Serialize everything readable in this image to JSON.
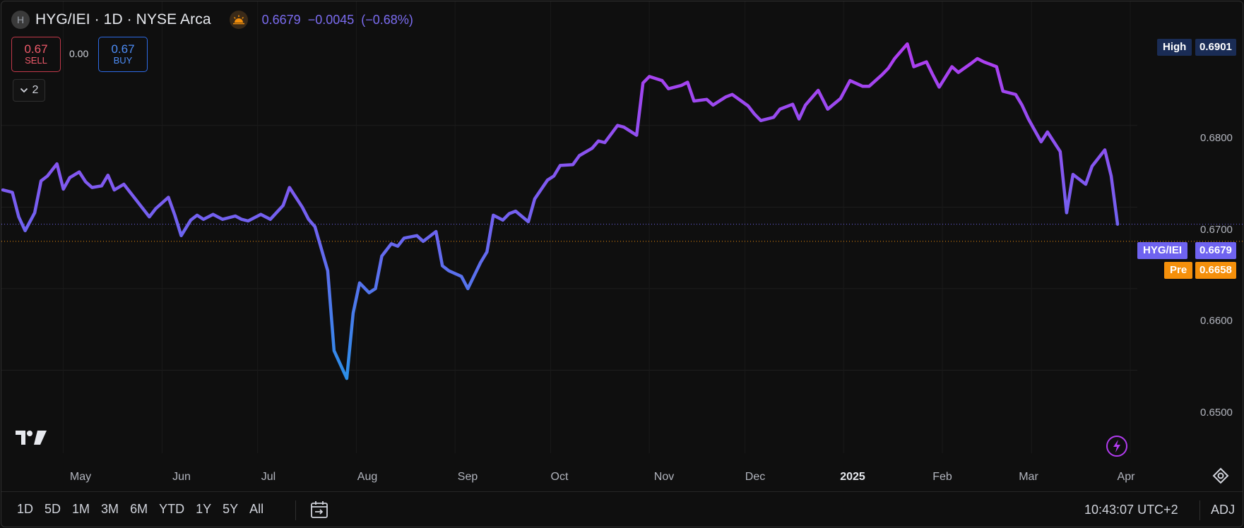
{
  "header": {
    "symbol_initial": "H",
    "title": "HYG/IEI · 1D · NYSE Arca",
    "last_price": "0.6679",
    "change": "−0.0045",
    "change_pct": "(−0.68%)",
    "session_icon": "sunrise-icon"
  },
  "trade": {
    "sell_price": "0.67",
    "sell_label": "SELL",
    "spread": "0.00",
    "buy_price": "0.67",
    "buy_label": "BUY",
    "indicators_count": "2"
  },
  "price_axis": {
    "ticks": [
      "0.6800",
      "0.6700",
      "0.6600",
      "0.6500"
    ],
    "high_label": "High",
    "high_value": "0.6901",
    "symbol_label": "HYG/IEI",
    "symbol_value": "0.6679",
    "pre_label": "Pre",
    "pre_value": "0.6658"
  },
  "time_axis": {
    "months": [
      "May",
      "Jun",
      "Jul",
      "Aug",
      "Sep",
      "Oct",
      "Nov",
      "Dec",
      "2025",
      "Feb",
      "Mar",
      "Apr"
    ]
  },
  "footer": {
    "ranges": [
      "1D",
      "5D",
      "1M",
      "3M",
      "6M",
      "YTD",
      "1Y",
      "5Y",
      "All"
    ],
    "clock": "10:43:07 UTC+2",
    "adj": "ADJ"
  },
  "colors": {
    "background": "#0f0f0f",
    "line_low": "#2b8fe8",
    "line_mid": "#6f63f0",
    "line_high": "#b23cf0",
    "symbol_tag": "#6f63f0",
    "pre_tag": "#f5900b",
    "high_tag": "#1a2c55",
    "sell": "#ef5a6a",
    "buy": "#4d8df7"
  },
  "chart_data": {
    "type": "line",
    "title": "HYG/IEI · 1D · NYSE Arca",
    "xlabel": "",
    "ylabel": "",
    "ylim": [
      0.6455,
      0.6905
    ],
    "x_range": [
      "2024-04-12",
      "2025-03-28"
    ],
    "grid": true,
    "high_line": 0.6901,
    "last_line": 0.6679,
    "pre_line": 0.6658,
    "series": [
      {
        "x": [
          "2024-04-12",
          "2024-04-15",
          "2024-04-17",
          "2024-04-19",
          "2024-04-22",
          "2024-04-24",
          "2024-04-26",
          "2024-04-29",
          "2024-05-01",
          "2024-05-03",
          "2024-05-06",
          "2024-05-08",
          "2024-05-10",
          "2024-05-13",
          "2024-05-15",
          "2024-05-17",
          "2024-05-20",
          "2024-05-22",
          "2024-05-24",
          "2024-05-28",
          "2024-05-30",
          "2024-06-03",
          "2024-06-05",
          "2024-06-07",
          "2024-06-10",
          "2024-06-12",
          "2024-06-14",
          "2024-06-17",
          "2024-06-20",
          "2024-06-24",
          "2024-06-26",
          "2024-06-28",
          "2024-07-02",
          "2024-07-05",
          "2024-07-09",
          "2024-07-11",
          "2024-07-15",
          "2024-07-17",
          "2024-07-19",
          "2024-07-23",
          "2024-07-25",
          "2024-07-29",
          "2024-07-31",
          "2024-08-02",
          "2024-08-05",
          "2024-08-07",
          "2024-08-09",
          "2024-08-12",
          "2024-08-14",
          "2024-08-16",
          "2024-08-20",
          "2024-08-22",
          "2024-08-26",
          "2024-08-28",
          "2024-08-30",
          "2024-09-03",
          "2024-09-05",
          "2024-09-09",
          "2024-09-11",
          "2024-09-13",
          "2024-09-16",
          "2024-09-18",
          "2024-09-20",
          "2024-09-24",
          "2024-09-26",
          "2024-09-30",
          "2024-10-02",
          "2024-10-04",
          "2024-10-08",
          "2024-10-10",
          "2024-10-14",
          "2024-10-16",
          "2024-10-18",
          "2024-10-22",
          "2024-10-24",
          "2024-10-28",
          "2024-10-30",
          "2024-11-01",
          "2024-11-05",
          "2024-11-07",
          "2024-11-11",
          "2024-11-13",
          "2024-11-15",
          "2024-11-19",
          "2024-11-21",
          "2024-11-25",
          "2024-11-27",
          "2024-12-02",
          "2024-12-04",
          "2024-12-06",
          "2024-12-10",
          "2024-12-12",
          "2024-12-16",
          "2024-12-18",
          "2024-12-20",
          "2024-12-24",
          "2024-12-27",
          "2024-12-31",
          "2025-01-03",
          "2025-01-07",
          "2025-01-09",
          "2025-01-13",
          "2025-01-15",
          "2025-01-17",
          "2025-01-21",
          "2025-01-23",
          "2025-01-27",
          "2025-01-29",
          "2025-01-31",
          "2025-02-04",
          "2025-02-06",
          "2025-02-10",
          "2025-02-12",
          "2025-02-14",
          "2025-02-18",
          "2025-02-20",
          "2025-02-24",
          "2025-02-26",
          "2025-02-28",
          "2025-03-04",
          "2025-03-06",
          "2025-03-10",
          "2025-03-12",
          "2025-03-14",
          "2025-03-18",
          "2025-03-20",
          "2025-03-24",
          "2025-03-26",
          "2025-03-28"
        ],
        "values": [
          0.6721,
          0.6718,
          0.6688,
          0.6671,
          0.6693,
          0.6732,
          0.6738,
          0.6753,
          0.6722,
          0.6736,
          0.6743,
          0.6731,
          0.6724,
          0.6726,
          0.6739,
          0.6721,
          0.6728,
          0.6718,
          0.6708,
          0.6688,
          0.6698,
          0.6712,
          0.669,
          0.6665,
          0.6684,
          0.669,
          0.6685,
          0.6691,
          0.6685,
          0.6689,
          0.6685,
          0.6683,
          0.6691,
          0.6685,
          0.6702,
          0.6724,
          0.67,
          0.6685,
          0.6676,
          0.6622,
          0.6524,
          0.649,
          0.657,
          0.6607,
          0.6595,
          0.66,
          0.664,
          0.6655,
          0.6652,
          0.6662,
          0.6665,
          0.6658,
          0.667,
          0.6628,
          0.6622,
          0.6615,
          0.66,
          0.6632,
          0.6645,
          0.669,
          0.6684,
          0.6692,
          0.6695,
          0.6682,
          0.671,
          0.6733,
          0.6738,
          0.6751,
          0.6752,
          0.6763,
          0.6772,
          0.6781,
          0.6779,
          0.68,
          0.6798,
          0.6788,
          0.6852,
          0.686,
          0.6855,
          0.6845,
          0.6849,
          0.6853,
          0.683,
          0.6832,
          0.6825,
          0.6835,
          0.6838,
          0.6824,
          0.6814,
          0.6806,
          0.681,
          0.682,
          0.6826,
          0.6808,
          0.6825,
          0.6843,
          0.682,
          0.6833,
          0.6855,
          0.6848,
          0.6848,
          0.6862,
          0.687,
          0.6882,
          0.69,
          0.6872,
          0.6878,
          0.6862,
          0.6847,
          0.6872,
          0.6865,
          0.6876,
          0.6882,
          0.6878,
          0.6872,
          0.6842,
          0.6838,
          0.6825,
          0.6808,
          0.678,
          0.6792,
          0.6768,
          0.6693,
          0.674,
          0.6728,
          0.675,
          0.677,
          0.6738,
          0.6679
        ]
      }
    ]
  }
}
